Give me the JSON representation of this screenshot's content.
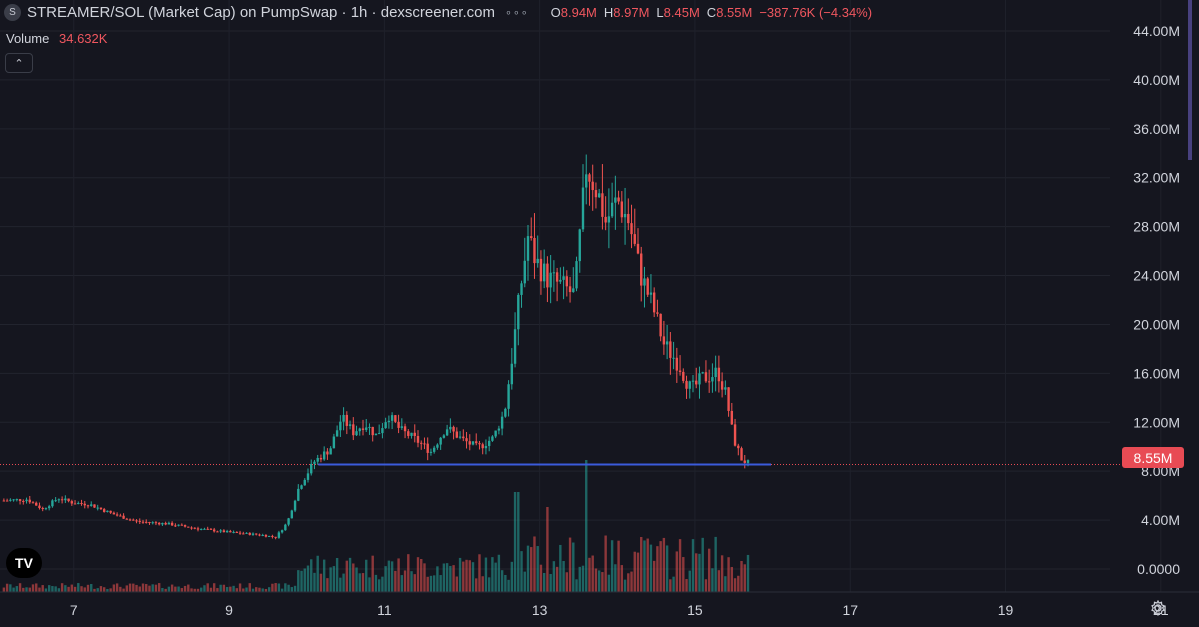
{
  "header": {
    "symbol_icon": "S",
    "title": "STREAMER/SOL (Market Cap) on PumpSwap · 1h · dexscreener.com",
    "menu_icon": "dots-icon",
    "ohlc": {
      "open_label": "O",
      "open": "8.94M",
      "high_label": "H",
      "high": "8.97M",
      "low_label": "L",
      "low": "8.45M",
      "close_label": "C",
      "close": "8.55M",
      "change": "−387.76K (−4.34%)"
    }
  },
  "volume_legend": {
    "label": "Volume",
    "value": "34.632K"
  },
  "collapse_button": "⌃",
  "logo": "TV",
  "price_badge": "8.55M",
  "colors": {
    "background": "#15161f",
    "up": "#26a69a",
    "down": "#ef5350",
    "line": "#3b5bdb",
    "badge": "#e84b54"
  },
  "chart_data": {
    "type": "candlestick",
    "y_ticks": [
      "44.00M",
      "40.00M",
      "36.00M",
      "32.00M",
      "28.00M",
      "24.00M",
      "20.00M",
      "16.00M",
      "12.00M",
      "8.00M",
      "4.00M",
      "0.0000"
    ],
    "y_tick_values": [
      44,
      40,
      36,
      32,
      28,
      24,
      20,
      16,
      12,
      8,
      4,
      0
    ],
    "x_ticks": [
      "7",
      "9",
      "11",
      "13",
      "15",
      "17",
      "19",
      "21"
    ],
    "x_tick_days": [
      7,
      9,
      11,
      13,
      15,
      17,
      19,
      21
    ],
    "x_range_days": [
      6.05,
      23.05
    ],
    "y_range_millions": [
      -1.8,
      44
    ],
    "current_price": 8.55,
    "horizontal_line": {
      "value": 8.55,
      "from_day": 10.15,
      "to_day": 15.98
    },
    "price_path_millions": [
      [
        6.1,
        5.6
      ],
      [
        6.4,
        5.7
      ],
      [
        6.6,
        4.9
      ],
      [
        6.8,
        5.8
      ],
      [
        7.0,
        5.4
      ],
      [
        7.2,
        5.3
      ],
      [
        7.5,
        4.5
      ],
      [
        7.8,
        3.9
      ],
      [
        8.2,
        3.7
      ],
      [
        8.6,
        3.3
      ],
      [
        9.0,
        3.0
      ],
      [
        9.4,
        2.8
      ],
      [
        9.6,
        2.6
      ],
      [
        9.75,
        3.8
      ],
      [
        9.9,
        6.7
      ],
      [
        10.1,
        8.8
      ],
      [
        10.3,
        9.8
      ],
      [
        10.45,
        12.4
      ],
      [
        10.6,
        11.2
      ],
      [
        10.75,
        11.9
      ],
      [
        10.9,
        10.9
      ],
      [
        11.05,
        12.6
      ],
      [
        11.2,
        11.4
      ],
      [
        11.4,
        10.6
      ],
      [
        11.6,
        9.6
      ],
      [
        11.8,
        11.6
      ],
      [
        12.0,
        10.6
      ],
      [
        12.2,
        9.9
      ],
      [
        12.4,
        10.7
      ],
      [
        12.55,
        12.9
      ],
      [
        12.65,
        17.6
      ],
      [
        12.75,
        22.8
      ],
      [
        12.85,
        27.2
      ],
      [
        12.95,
        25.2
      ],
      [
        13.1,
        23.8
      ],
      [
        13.3,
        23.1
      ],
      [
        13.45,
        22.4
      ],
      [
        13.6,
        32.9
      ],
      [
        13.75,
        30.8
      ],
      [
        13.85,
        28.4
      ],
      [
        14.0,
        30.2
      ],
      [
        14.15,
        28.4
      ],
      [
        14.3,
        24.1
      ],
      [
        14.45,
        21.6
      ],
      [
        14.6,
        18.4
      ],
      [
        14.8,
        16.7
      ],
      [
        14.95,
        14.6
      ],
      [
        15.1,
        15.6
      ],
      [
        15.3,
        16.1
      ],
      [
        15.4,
        14.2
      ],
      [
        15.5,
        10.6
      ],
      [
        15.6,
        9.0
      ],
      [
        15.7,
        8.55
      ]
    ],
    "volume_spikes_days": [
      12.7,
      13.1,
      13.6,
      14.3
    ]
  }
}
